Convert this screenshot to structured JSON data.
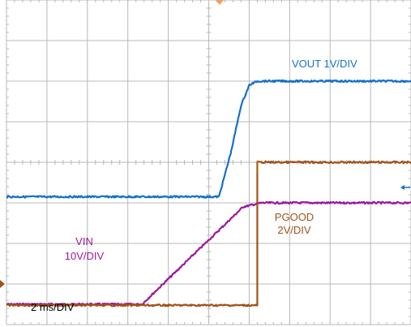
{
  "chart_data": {
    "type": "line",
    "title": "",
    "xlabel": "",
    "ylabel": "",
    "divisions": {
      "x": 10,
      "y": 8
    },
    "grid": true,
    "timebase": "2 ms/DIV",
    "x_unit": "ms",
    "xlim": [
      0,
      20
    ],
    "series": [
      {
        "name": "VIN",
        "scale_label": "10V/DIV",
        "color": "#9a1a9a",
        "volts_per_div": 10,
        "ground_div": 0,
        "points": [
          [
            0,
            5
          ],
          [
            6.7,
            5
          ],
          [
            11.7,
            29
          ],
          [
            12.6,
            30
          ],
          [
            20,
            30
          ]
        ]
      },
      {
        "name": "VOUT",
        "scale_label": "1V/DIV",
        "color": "#1570c8",
        "volts_per_div": 1,
        "ground_div": 0,
        "points": [
          [
            0,
            3.15
          ],
          [
            10.5,
            3.15
          ],
          [
            11.1,
            4.25
          ],
          [
            11.6,
            5.4
          ],
          [
            12.0,
            5.9
          ],
          [
            12.4,
            6.0
          ],
          [
            20,
            6.0
          ]
        ]
      },
      {
        "name": "PGOOD",
        "scale_label": "2V/DIV",
        "color": "#a0521c",
        "volts_per_div": 2,
        "ground_div": 0,
        "points": [
          [
            0,
            0.95
          ],
          [
            12.4,
            0.95
          ],
          [
            12.4,
            8.0
          ],
          [
            20,
            8.0
          ]
        ]
      }
    ]
  },
  "labels": {
    "vout_name": "VOUT",
    "vout_scale": "1V/DIV",
    "vin_name": "VIN",
    "vin_scale": "10V/DIV",
    "pgood_name": "PGOOD",
    "pgood_scale": "2V/DIV",
    "timebase": "2 ms/DIV"
  },
  "colors": {
    "vin": "#9a1a9a",
    "vout": "#1570c8",
    "pgood": "#a0521c",
    "pgood_highlight": "#e0b020",
    "grid": "#b8b8b8",
    "marker": "#f0a060"
  }
}
